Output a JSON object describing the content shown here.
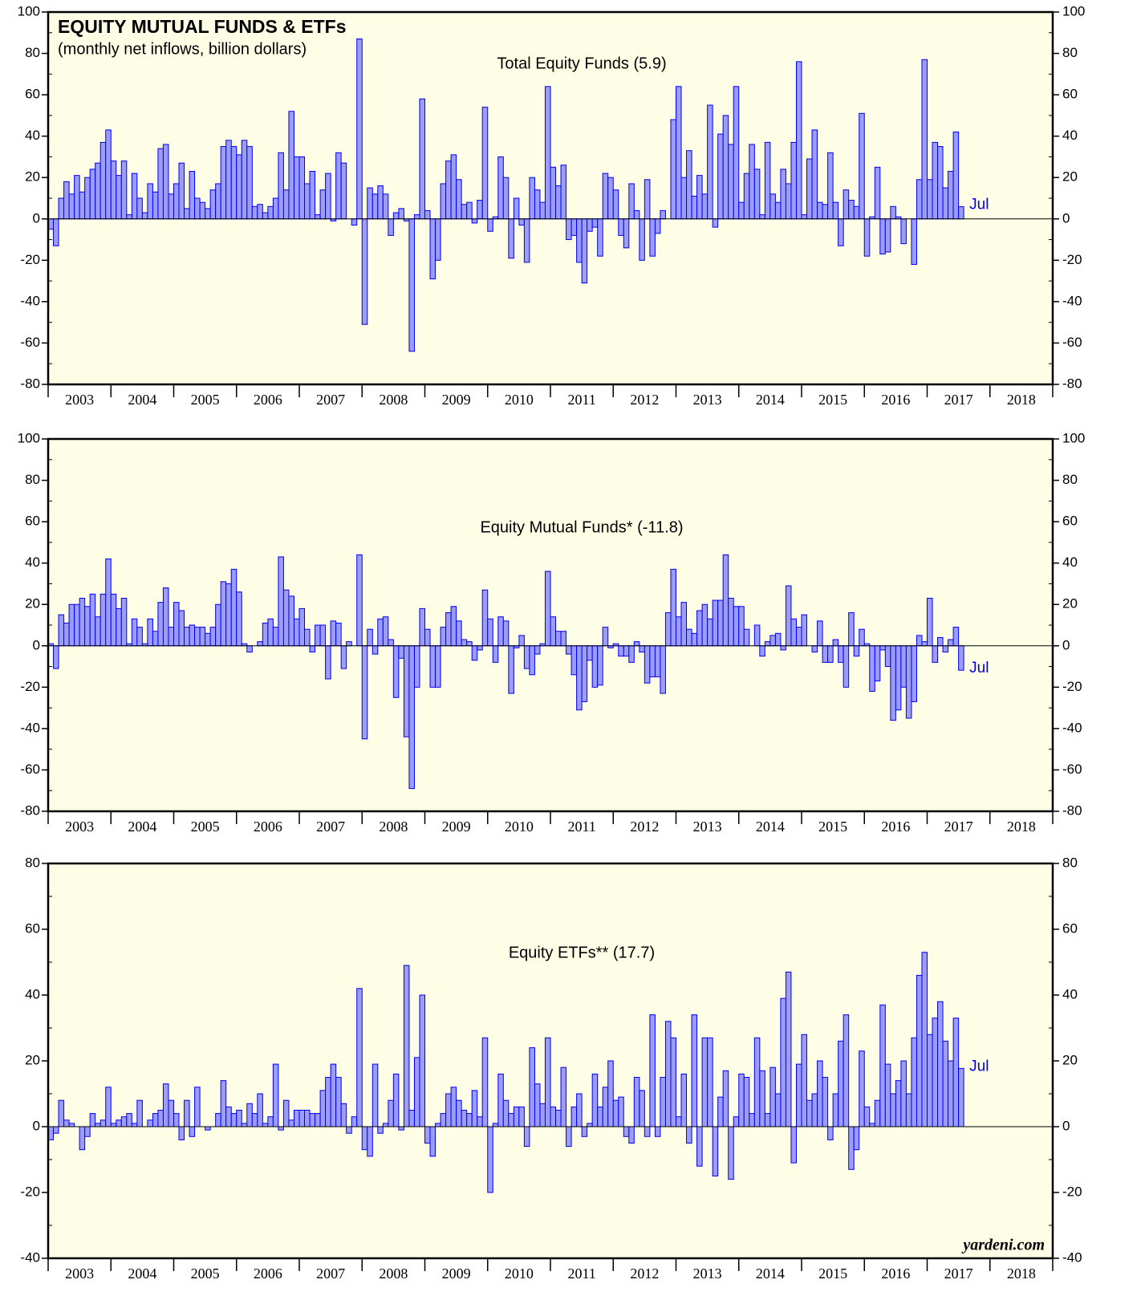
{
  "title": "EQUITY MUTUAL FUNDS & ETFs",
  "subtitle": "(monthly net inflows, billion dollars)",
  "source": "yardeni.com",
  "chart_data": [
    {
      "type": "bar",
      "title": "Total Equity Funds (5.9)",
      "annotation": "Jul",
      "color": "#9c9cff",
      "edge_color": "#0000ee",
      "categories": [
        null,
        null,
        null,
        null,
        null,
        null,
        "2003",
        null,
        null,
        null,
        null,
        null,
        null,
        null,
        null,
        null,
        null,
        null,
        "2004",
        null,
        null,
        null,
        null,
        null,
        null,
        null,
        null,
        null,
        null,
        null,
        "2005",
        null,
        null,
        null,
        null,
        null,
        null,
        null,
        null,
        null,
        null,
        null,
        "2006",
        null,
        null,
        null,
        null,
        null,
        null,
        null,
        null,
        null,
        null,
        null,
        "2007",
        null,
        null,
        null,
        null,
        null,
        null,
        null,
        null,
        null,
        null,
        null,
        "2008",
        null,
        null,
        null,
        null,
        null,
        null,
        null,
        null,
        null,
        null,
        null,
        "2009",
        null,
        null,
        null,
        null,
        null,
        null,
        null,
        null,
        null,
        null,
        null,
        "2010",
        null,
        null,
        null,
        null,
        null,
        null,
        null,
        null,
        null,
        null,
        null,
        "2011",
        null,
        null,
        null,
        null,
        null,
        null,
        null,
        null,
        null,
        null,
        null,
        "2012",
        null,
        null,
        null,
        null,
        null,
        null,
        null,
        null,
        null,
        null,
        null,
        "2013",
        null,
        null,
        null,
        null,
        null,
        null,
        null,
        null,
        null,
        null,
        null,
        "2014",
        null,
        null,
        null,
        null,
        null,
        null,
        null,
        null,
        null,
        null,
        null,
        "2015",
        null,
        null,
        null,
        null,
        null,
        null,
        null,
        null,
        null,
        null,
        null,
        "2016",
        null,
        null,
        null,
        null,
        null,
        null,
        null,
        null,
        null,
        null,
        null,
        "2017",
        null,
        null,
        null,
        null,
        null,
        null,
        null,
        null,
        null,
        null,
        null,
        "2018",
        null,
        null,
        null,
        null,
        null
      ],
      "values": [
        -5,
        -13,
        10,
        18,
        12,
        21,
        13,
        20,
        24,
        27,
        37,
        43,
        28,
        21,
        28,
        2,
        22,
        10,
        3,
        17,
        13,
        34,
        36,
        12,
        17,
        27,
        5,
        23,
        10,
        8,
        5,
        14,
        17,
        35,
        38,
        35,
        31,
        38,
        35,
        6,
        7,
        3,
        6,
        10,
        32,
        14,
        52,
        30,
        30,
        17,
        23,
        2,
        14,
        22,
        -1,
        32,
        27,
        0,
        -3,
        87,
        -51,
        15,
        12,
        16,
        12,
        -8,
        3,
        5,
        -1,
        -64,
        2,
        58,
        4,
        -29,
        -20,
        17,
        28,
        31,
        19,
        7,
        8,
        -2,
        9,
        54,
        -6,
        1,
        30,
        20,
        -19,
        10,
        -3,
        -21,
        20,
        14,
        8,
        64,
        25,
        16,
        26,
        -10,
        -8,
        -21,
        -31,
        -6,
        -4,
        -18,
        22,
        20,
        14,
        -8,
        -14,
        17,
        4,
        -20,
        19,
        -18,
        -7,
        4,
        0,
        48,
        64,
        20,
        33,
        11,
        21,
        12,
        55,
        -4,
        41,
        50,
        36,
        64,
        8,
        22,
        36,
        24,
        2,
        37,
        12,
        8,
        24,
        17,
        37,
        76,
        2,
        29,
        43,
        8,
        7,
        32,
        8,
        -13,
        14,
        9,
        6,
        51,
        -18,
        1,
        25,
        -17,
        -16,
        6,
        1,
        -12,
        0,
        -22,
        19,
        77,
        19,
        37,
        35,
        15,
        23,
        42,
        5.9,
        null,
        null,
        null,
        null,
        null,
        null,
        null,
        null,
        null,
        null,
        null,
        null,
        null,
        null,
        null,
        null,
        null
      ],
      "ylim": [
        -80,
        100
      ],
      "yticks": [
        -80,
        -60,
        -40,
        -20,
        0,
        20,
        40,
        60,
        80,
        100
      ]
    },
    {
      "type": "bar",
      "title": "Equity Mutual Funds* (-11.8)",
      "annotation": "Jul",
      "color": "#9c9cff",
      "edge_color": "#0000ee",
      "categories": [
        null,
        null,
        null,
        null,
        null,
        null,
        "2003",
        null,
        null,
        null,
        null,
        null,
        null,
        null,
        null,
        null,
        null,
        null,
        "2004",
        null,
        null,
        null,
        null,
        null,
        null,
        null,
        null,
        null,
        null,
        null,
        "2005",
        null,
        null,
        null,
        null,
        null,
        null,
        null,
        null,
        null,
        null,
        null,
        "2006",
        null,
        null,
        null,
        null,
        null,
        null,
        null,
        null,
        null,
        null,
        null,
        "2007",
        null,
        null,
        null,
        null,
        null,
        null,
        null,
        null,
        null,
        null,
        null,
        "2008",
        null,
        null,
        null,
        null,
        null,
        null,
        null,
        null,
        null,
        null,
        null,
        "2009",
        null,
        null,
        null,
        null,
        null,
        null,
        null,
        null,
        null,
        null,
        null,
        "2010",
        null,
        null,
        null,
        null,
        null,
        null,
        null,
        null,
        null,
        null,
        null,
        "2011",
        null,
        null,
        null,
        null,
        null,
        null,
        null,
        null,
        null,
        null,
        null,
        "2012",
        null,
        null,
        null,
        null,
        null,
        null,
        null,
        null,
        null,
        null,
        null,
        "2013",
        null,
        null,
        null,
        null,
        null,
        null,
        null,
        null,
        null,
        null,
        null,
        "2014",
        null,
        null,
        null,
        null,
        null,
        null,
        null,
        null,
        null,
        null,
        null,
        "2015",
        null,
        null,
        null,
        null,
        null,
        null,
        null,
        null,
        null,
        null,
        null,
        "2016",
        null,
        null,
        null,
        null,
        null,
        null,
        null,
        null,
        null,
        null,
        null,
        "2017",
        null,
        null,
        null,
        null,
        null,
        null,
        null,
        null,
        null,
        null,
        null,
        "2018",
        null,
        null,
        null,
        null,
        null
      ],
      "values": [
        1,
        -11,
        15,
        11,
        20,
        20,
        23,
        19,
        25,
        14,
        25,
        42,
        25,
        18,
        23,
        1,
        13,
        9,
        1,
        13,
        7,
        21,
        28,
        9,
        21,
        17,
        9,
        10,
        9,
        9,
        6,
        9,
        20,
        31,
        30,
        37,
        26,
        1,
        -3,
        0,
        2,
        11,
        13,
        9,
        43,
        27,
        24,
        13,
        18,
        8,
        -3,
        10,
        10,
        -16,
        12,
        11,
        -11,
        2,
        0,
        44,
        -45,
        8,
        -4,
        13,
        14,
        3,
        -25,
        -6,
        -44,
        -69,
        -20,
        18,
        8,
        -20,
        -20,
        9,
        16,
        19,
        12,
        3,
        2,
        -7,
        -2,
        27,
        13,
        -8,
        14,
        12,
        -23,
        -1,
        5,
        -11,
        -14,
        -4,
        1,
        36,
        14,
        7,
        7,
        -4,
        -14,
        -31,
        -27,
        -7,
        -20,
        -19,
        9,
        -1,
        1,
        -5,
        -5,
        -8,
        2,
        -3,
        -18,
        -15,
        -15,
        -23,
        16,
        37,
        14,
        21,
        8,
        6,
        17,
        20,
        13,
        22,
        22,
        44,
        23,
        19,
        19,
        8,
        0,
        10,
        -5,
        2,
        5,
        6,
        -2,
        29,
        13,
        9,
        15,
        0,
        -3,
        12,
        -8,
        -8,
        3,
        -8,
        -20,
        16,
        -5,
        8,
        1,
        -22,
        -17,
        -2,
        -10,
        -36,
        -31,
        -20,
        -35,
        -27,
        5,
        2,
        23,
        -8,
        4,
        -3,
        3,
        9,
        -11.8,
        null,
        null,
        null,
        null,
        null,
        null,
        null,
        null,
        null,
        null,
        null,
        null,
        null,
        null,
        null,
        null,
        null
      ],
      "ylim": [
        -80,
        100
      ],
      "yticks": [
        -80,
        -60,
        -40,
        -20,
        0,
        20,
        40,
        60,
        80,
        100
      ]
    },
    {
      "type": "bar",
      "title": "Equity ETFs** (17.7)",
      "annotation": "Jul",
      "color": "#9c9cff",
      "edge_color": "#0000ee",
      "categories": [
        null,
        null,
        null,
        null,
        null,
        null,
        "2003",
        null,
        null,
        null,
        null,
        null,
        null,
        null,
        null,
        null,
        null,
        null,
        "2004",
        null,
        null,
        null,
        null,
        null,
        null,
        null,
        null,
        null,
        null,
        null,
        "2005",
        null,
        null,
        null,
        null,
        null,
        null,
        null,
        null,
        null,
        null,
        null,
        "2006",
        null,
        null,
        null,
        null,
        null,
        null,
        null,
        null,
        null,
        null,
        null,
        "2007",
        null,
        null,
        null,
        null,
        null,
        null,
        null,
        null,
        null,
        null,
        null,
        "2008",
        null,
        null,
        null,
        null,
        null,
        null,
        null,
        null,
        null,
        null,
        null,
        "2009",
        null,
        null,
        null,
        null,
        null,
        null,
        null,
        null,
        null,
        null,
        null,
        "2010",
        null,
        null,
        null,
        null,
        null,
        null,
        null,
        null,
        null,
        null,
        null,
        "2011",
        null,
        null,
        null,
        null,
        null,
        null,
        null,
        null,
        null,
        null,
        null,
        "2012",
        null,
        null,
        null,
        null,
        null,
        null,
        null,
        null,
        null,
        null,
        null,
        "2013",
        null,
        null,
        null,
        null,
        null,
        null,
        null,
        null,
        null,
        null,
        null,
        "2014",
        null,
        null,
        null,
        null,
        null,
        null,
        null,
        null,
        null,
        null,
        null,
        "2015",
        null,
        null,
        null,
        null,
        null,
        null,
        null,
        null,
        null,
        null,
        null,
        "2016",
        null,
        null,
        null,
        null,
        null,
        null,
        null,
        null,
        null,
        null,
        null,
        "2017",
        null,
        null,
        null,
        null,
        null,
        null,
        null,
        null,
        null,
        null,
        null,
        "2018",
        null,
        null,
        null,
        null,
        null
      ],
      "values": [
        -4,
        -2,
        8,
        2,
        1,
        0,
        -7,
        -3,
        4,
        1,
        2,
        12,
        1,
        2,
        3,
        4,
        1,
        8,
        0,
        2,
        4,
        5,
        13,
        8,
        4,
        -4,
        8,
        -3,
        12,
        0,
        -1,
        0,
        4,
        14,
        6,
        4,
        5,
        1,
        7,
        4,
        10,
        1,
        3,
        19,
        -1,
        8,
        2,
        5,
        5,
        5,
        4,
        4,
        11,
        15,
        19,
        15,
        7,
        -2,
        3,
        42,
        -7,
        -9,
        19,
        -2,
        1,
        8,
        16,
        -1,
        49,
        5,
        21,
        40,
        -5,
        -9,
        1,
        4,
        10,
        12,
        8,
        5,
        4,
        11,
        3,
        27,
        -20,
        1,
        16,
        8,
        4,
        6,
        6,
        -6,
        24,
        13,
        7,
        27,
        6,
        5,
        18,
        -6,
        6,
        10,
        -3,
        1,
        16,
        6,
        12,
        20,
        8,
        9,
        -3,
        -5,
        15,
        11,
        -3,
        34,
        -3,
        15,
        32,
        27,
        3,
        16,
        -5,
        34,
        -12,
        27,
        27,
        -15,
        9,
        17,
        -16,
        3,
        16,
        15,
        4,
        27,
        17,
        4,
        18,
        10,
        39,
        47,
        -11,
        19,
        28,
        8,
        10,
        20,
        15,
        -4,
        10,
        26,
        34,
        -13,
        -7,
        23,
        6,
        1,
        8,
        37,
        19,
        10,
        14,
        20,
        10,
        27,
        46,
        53,
        28,
        33,
        38,
        26,
        20,
        33,
        17.7,
        null,
        null,
        null,
        null,
        null,
        null,
        null,
        null,
        null,
        null,
        null,
        null,
        null,
        null,
        null,
        null,
        null
      ],
      "ylim": [
        -40,
        80
      ],
      "yticks": [
        -40,
        -20,
        0,
        20,
        40,
        60,
        80
      ]
    }
  ]
}
